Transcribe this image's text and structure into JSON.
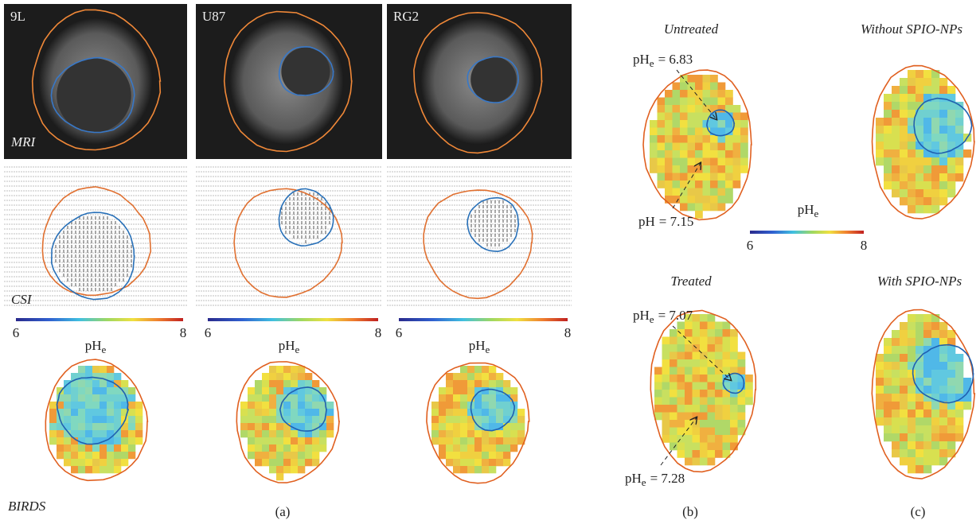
{
  "panel_a": {
    "columns": [
      {
        "label": "9L"
      },
      {
        "label": "U87"
      },
      {
        "label": "RG2"
      }
    ],
    "row_labels": {
      "mri": "MRI",
      "csi": "CSI",
      "birds": "BIRDS"
    },
    "colorbar": {
      "min": "6",
      "max": "8",
      "label": {
        "base": "pH",
        "sub": "e"
      }
    },
    "caption": "(a)"
  },
  "panel_b": {
    "untreated": {
      "title": "Untreated",
      "annotations": [
        {
          "base": "pH",
          "sub": "e",
          "text": "= 6.83"
        },
        {
          "base": "pH",
          "text": "= 7.15"
        }
      ]
    },
    "treated": {
      "title": "Treated",
      "annotations": [
        {
          "base": "pH",
          "sub": "e",
          "text": "= 7.07"
        },
        {
          "base": "pH",
          "sub": "e",
          "text": "= 7.28"
        }
      ]
    },
    "colorbar": {
      "min": "6",
      "max": "8",
      "label": {
        "base": "pH",
        "sub": "e"
      }
    },
    "caption": "(b)"
  },
  "panel_c": {
    "top_title": "Without SPIO-NPs",
    "bottom_title": "With SPIO-NPs",
    "caption": "(c)"
  }
}
